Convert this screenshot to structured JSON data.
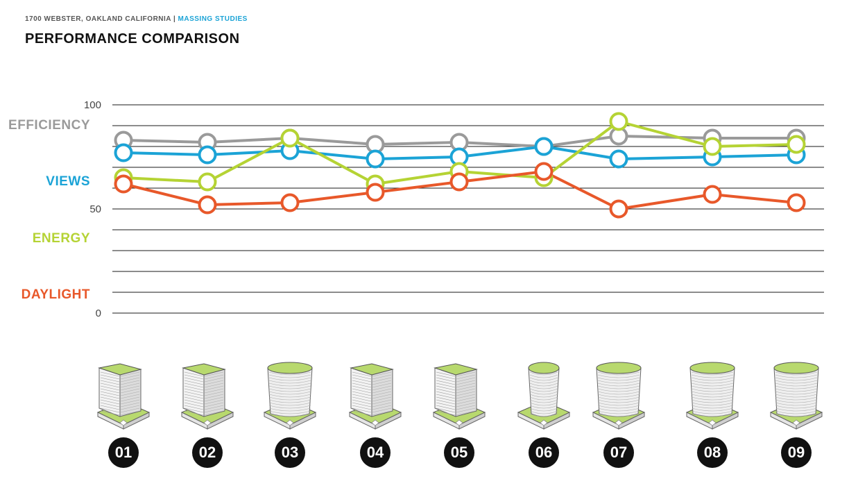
{
  "header": {
    "project": "1700 WEBSTER, OAKLAND CALIFORNIA",
    "separator": "|",
    "section": "MASSING STUDIES",
    "title": "PERFORMANCE COMPARISON"
  },
  "colors": {
    "efficiency": "#9a9a9a",
    "views": "#1ba3d6",
    "energy": "#b5d334",
    "daylight": "#e8582a",
    "roof_green": "#b8d96e"
  },
  "chart_data": {
    "type": "line",
    "categories": [
      "01",
      "02",
      "03",
      "04",
      "05",
      "06",
      "07",
      "08",
      "09"
    ],
    "ylim": [
      0,
      100
    ],
    "yticks": [
      100,
      50,
      0
    ],
    "grid": true,
    "series": [
      {
        "name": "EFFICIENCY",
        "color": "#9a9a9a",
        "values": [
          83,
          82,
          84,
          81,
          82,
          80,
          85,
          84,
          84
        ]
      },
      {
        "name": "VIEWS",
        "color": "#1ba3d6",
        "values": [
          77,
          76,
          78,
          74,
          75,
          80,
          74,
          75,
          76
        ]
      },
      {
        "name": "ENERGY",
        "color": "#b5d334",
        "values": [
          65,
          63,
          84,
          62,
          68,
          65,
          92,
          80,
          81
        ]
      },
      {
        "name": "DAYLIGHT",
        "color": "#e8582a",
        "values": [
          62,
          52,
          53,
          58,
          63,
          68,
          50,
          57,
          53
        ]
      }
    ]
  },
  "schemes": [
    {
      "label": "01"
    },
    {
      "label": "02"
    },
    {
      "label": "03"
    },
    {
      "label": "04"
    },
    {
      "label": "05"
    },
    {
      "label": "06"
    },
    {
      "label": "07"
    },
    {
      "label": "08"
    },
    {
      "label": "09"
    }
  ]
}
